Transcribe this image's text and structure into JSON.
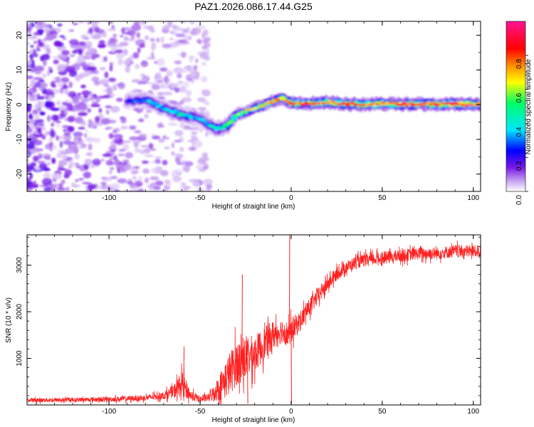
{
  "title": "PAZ1.2026.086.17.44.G25",
  "chart_data": [
    {
      "type": "heatmap",
      "xlabel": "Height of straight line (km)",
      "ylabel": "Frequency (Hz)",
      "xlim": [
        -145,
        104
      ],
      "ylim": [
        -25,
        24
      ],
      "xticks": [
        -100,
        -50,
        0,
        50,
        100
      ],
      "xtick_labels": [
        "-100",
        "-50",
        "0",
        "50",
        "100"
      ],
      "yticks": [
        -20,
        -10,
        0,
        10,
        20
      ],
      "ytick_labels": [
        "-20",
        "-10",
        "0",
        "10",
        "20"
      ],
      "grid": false,
      "colorbar": {
        "label": "Normalized spectral amplitude",
        "range": [
          0,
          1
        ],
        "ticks": [
          0.0,
          0.2,
          0.4,
          0.6,
          0.8
        ],
        "tick_labels": [
          "0.0",
          "0.2",
          "0.4",
          "0.6",
          "0.8"
        ],
        "colors": [
          "#ffffff",
          "#c9a6f2",
          "#7a19e6",
          "#0000ff",
          "#00e6ff",
          "#00ff66",
          "#ffff00",
          "#ff8c00",
          "#ff0000",
          "#ff1493"
        ]
      },
      "ridge": {
        "name": "dominant frequency track",
        "x": [
          -90,
          -80,
          -70,
          -60,
          -50,
          -45,
          -40,
          -35,
          -30,
          -25,
          -20,
          -15,
          -10,
          -5,
          0,
          10,
          20,
          30,
          40,
          50,
          60,
          70,
          80,
          90,
          100
        ],
        "y": [
          1,
          1.5,
          -1,
          -3,
          -4,
          -6,
          -7,
          -6,
          -3,
          -2,
          -1,
          0,
          1,
          2,
          0.5,
          0.3,
          0.8,
          0.2,
          0,
          0.3,
          0.1,
          0.2,
          0.1,
          0.2,
          0.1
        ],
        "peak_amplitude": [
          0.25,
          0.35,
          0.4,
          0.45,
          0.35,
          0.4,
          0.45,
          0.5,
          0.6,
          0.65,
          0.7,
          0.7,
          0.75,
          0.8,
          0.85,
          0.9,
          0.9,
          0.9,
          0.9,
          0.9,
          0.95,
          0.9,
          0.9,
          0.95,
          0.9
        ]
      },
      "noise_region": {
        "x_range": [
          -145,
          -45
        ],
        "y_range": [
          -25,
          24
        ]
      }
    },
    {
      "type": "line",
      "xlabel": "Height of straight line (km)",
      "ylabel": "SNR (10 * v/v)",
      "xlim": [
        -145,
        104
      ],
      "ylim": [
        0,
        3650
      ],
      "xticks": [
        -100,
        -50,
        0,
        50,
        100
      ],
      "xtick_labels": [
        "-100",
        "-50",
        "0",
        "50",
        "100"
      ],
      "yticks": [
        1000,
        2000,
        3000
      ],
      "ytick_labels": [
        "1000",
        "2000",
        "3000"
      ],
      "grid": false,
      "series": [
        {
          "name": "SNR",
          "color": "#ff2020",
          "x": [
            -145,
            -120,
            -100,
            -80,
            -70,
            -65,
            -60,
            -57,
            -55,
            -50,
            -45,
            -40,
            -35,
            -30,
            -25,
            -20,
            -15,
            -10,
            -5,
            -1,
            0,
            5,
            10,
            15,
            20,
            25,
            30,
            35,
            40,
            50,
            60,
            70,
            80,
            90,
            100,
            104
          ],
          "y": [
            100,
            110,
            120,
            150,
            200,
            280,
            450,
            300,
            200,
            120,
            160,
            350,
            600,
            900,
            1000,
            1100,
            1300,
            1500,
            1600,
            1500,
            1600,
            1800,
            2100,
            2350,
            2600,
            2800,
            2950,
            3050,
            3100,
            3150,
            3200,
            3250,
            3250,
            3300,
            3300,
            3300
          ],
          "noise_amplitude": [
            50,
            50,
            60,
            70,
            90,
            150,
            300,
            200,
            120,
            80,
            100,
            300,
            500,
            550,
            500,
            450,
            400,
            350,
            300,
            300,
            300,
            250,
            200,
            200,
            180,
            150,
            150,
            150,
            150,
            150,
            150,
            150,
            150,
            150,
            150,
            150
          ]
        }
      ],
      "spikes": [
        {
          "x": -1,
          "y": 3650
        },
        {
          "x": 0,
          "y": 30
        },
        {
          "x": -27,
          "y": 2800
        },
        {
          "x": -59,
          "y": 1250
        },
        {
          "x": -24,
          "y": 30
        }
      ]
    }
  ]
}
